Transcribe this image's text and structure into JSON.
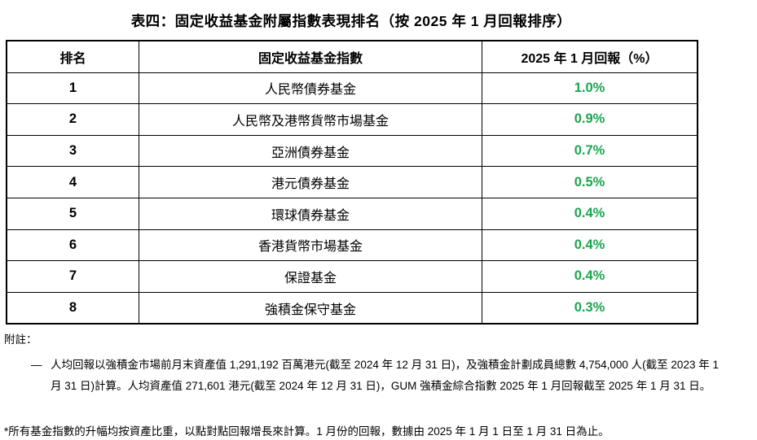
{
  "page": {
    "title": "表四：固定收益基金附屬指數表現排名（按 2025 年 1 月回報排序）"
  },
  "table": {
    "headers": [
      "排名",
      "固定收益基金指數",
      "2025 年 1 月回報（%）"
    ],
    "rows": [
      {
        "rank": "1",
        "fund": "人民幣債券基金",
        "return": "1.0%"
      },
      {
        "rank": "2",
        "fund": "人民幣及港幣貨幣市場基金",
        "return": "0.9%"
      },
      {
        "rank": "3",
        "fund": "亞洲債券基金",
        "return": "0.7%"
      },
      {
        "rank": "4",
        "fund": "港元債券基金",
        "return": "0.5%"
      },
      {
        "rank": "5",
        "fund": "環球債券基金",
        "return": "0.4%"
      },
      {
        "rank": "6",
        "fund": "香港貨幣市場基金",
        "return": "0.4%"
      },
      {
        "rank": "7",
        "fund": "保證基金",
        "return": "0.4%"
      },
      {
        "rank": "8",
        "fund": "強積金保守基金",
        "return": "0.3%"
      }
    ]
  },
  "notes": {
    "label": "附註：",
    "bullet_marker": "—",
    "bullet_text": "人均回報以強積金市場前月末資產值 1,291,192 百萬港元(截至 2024 年 12 月 31 日)，及強積金計劃成員總數 4,754,000 人(截至 2023 年 1 月 31 日)計算。人均資產值 271,601 港元(截至 2024 年 12 月 31 日)，GUM 強積金綜合指數 2025 年 1 月回報截至 2025 年 1 月 31 日。",
    "footnote": "*所有基金指數的升幅均按資產比重，以點對點回報增長來計算。1 月份的回報，數據由 2025 年 1 月 1 日至 1 月 31 日為止。"
  },
  "colors": {
    "return_green": "#1AA64E",
    "text_black": "#000000",
    "border_black": "#000000"
  }
}
